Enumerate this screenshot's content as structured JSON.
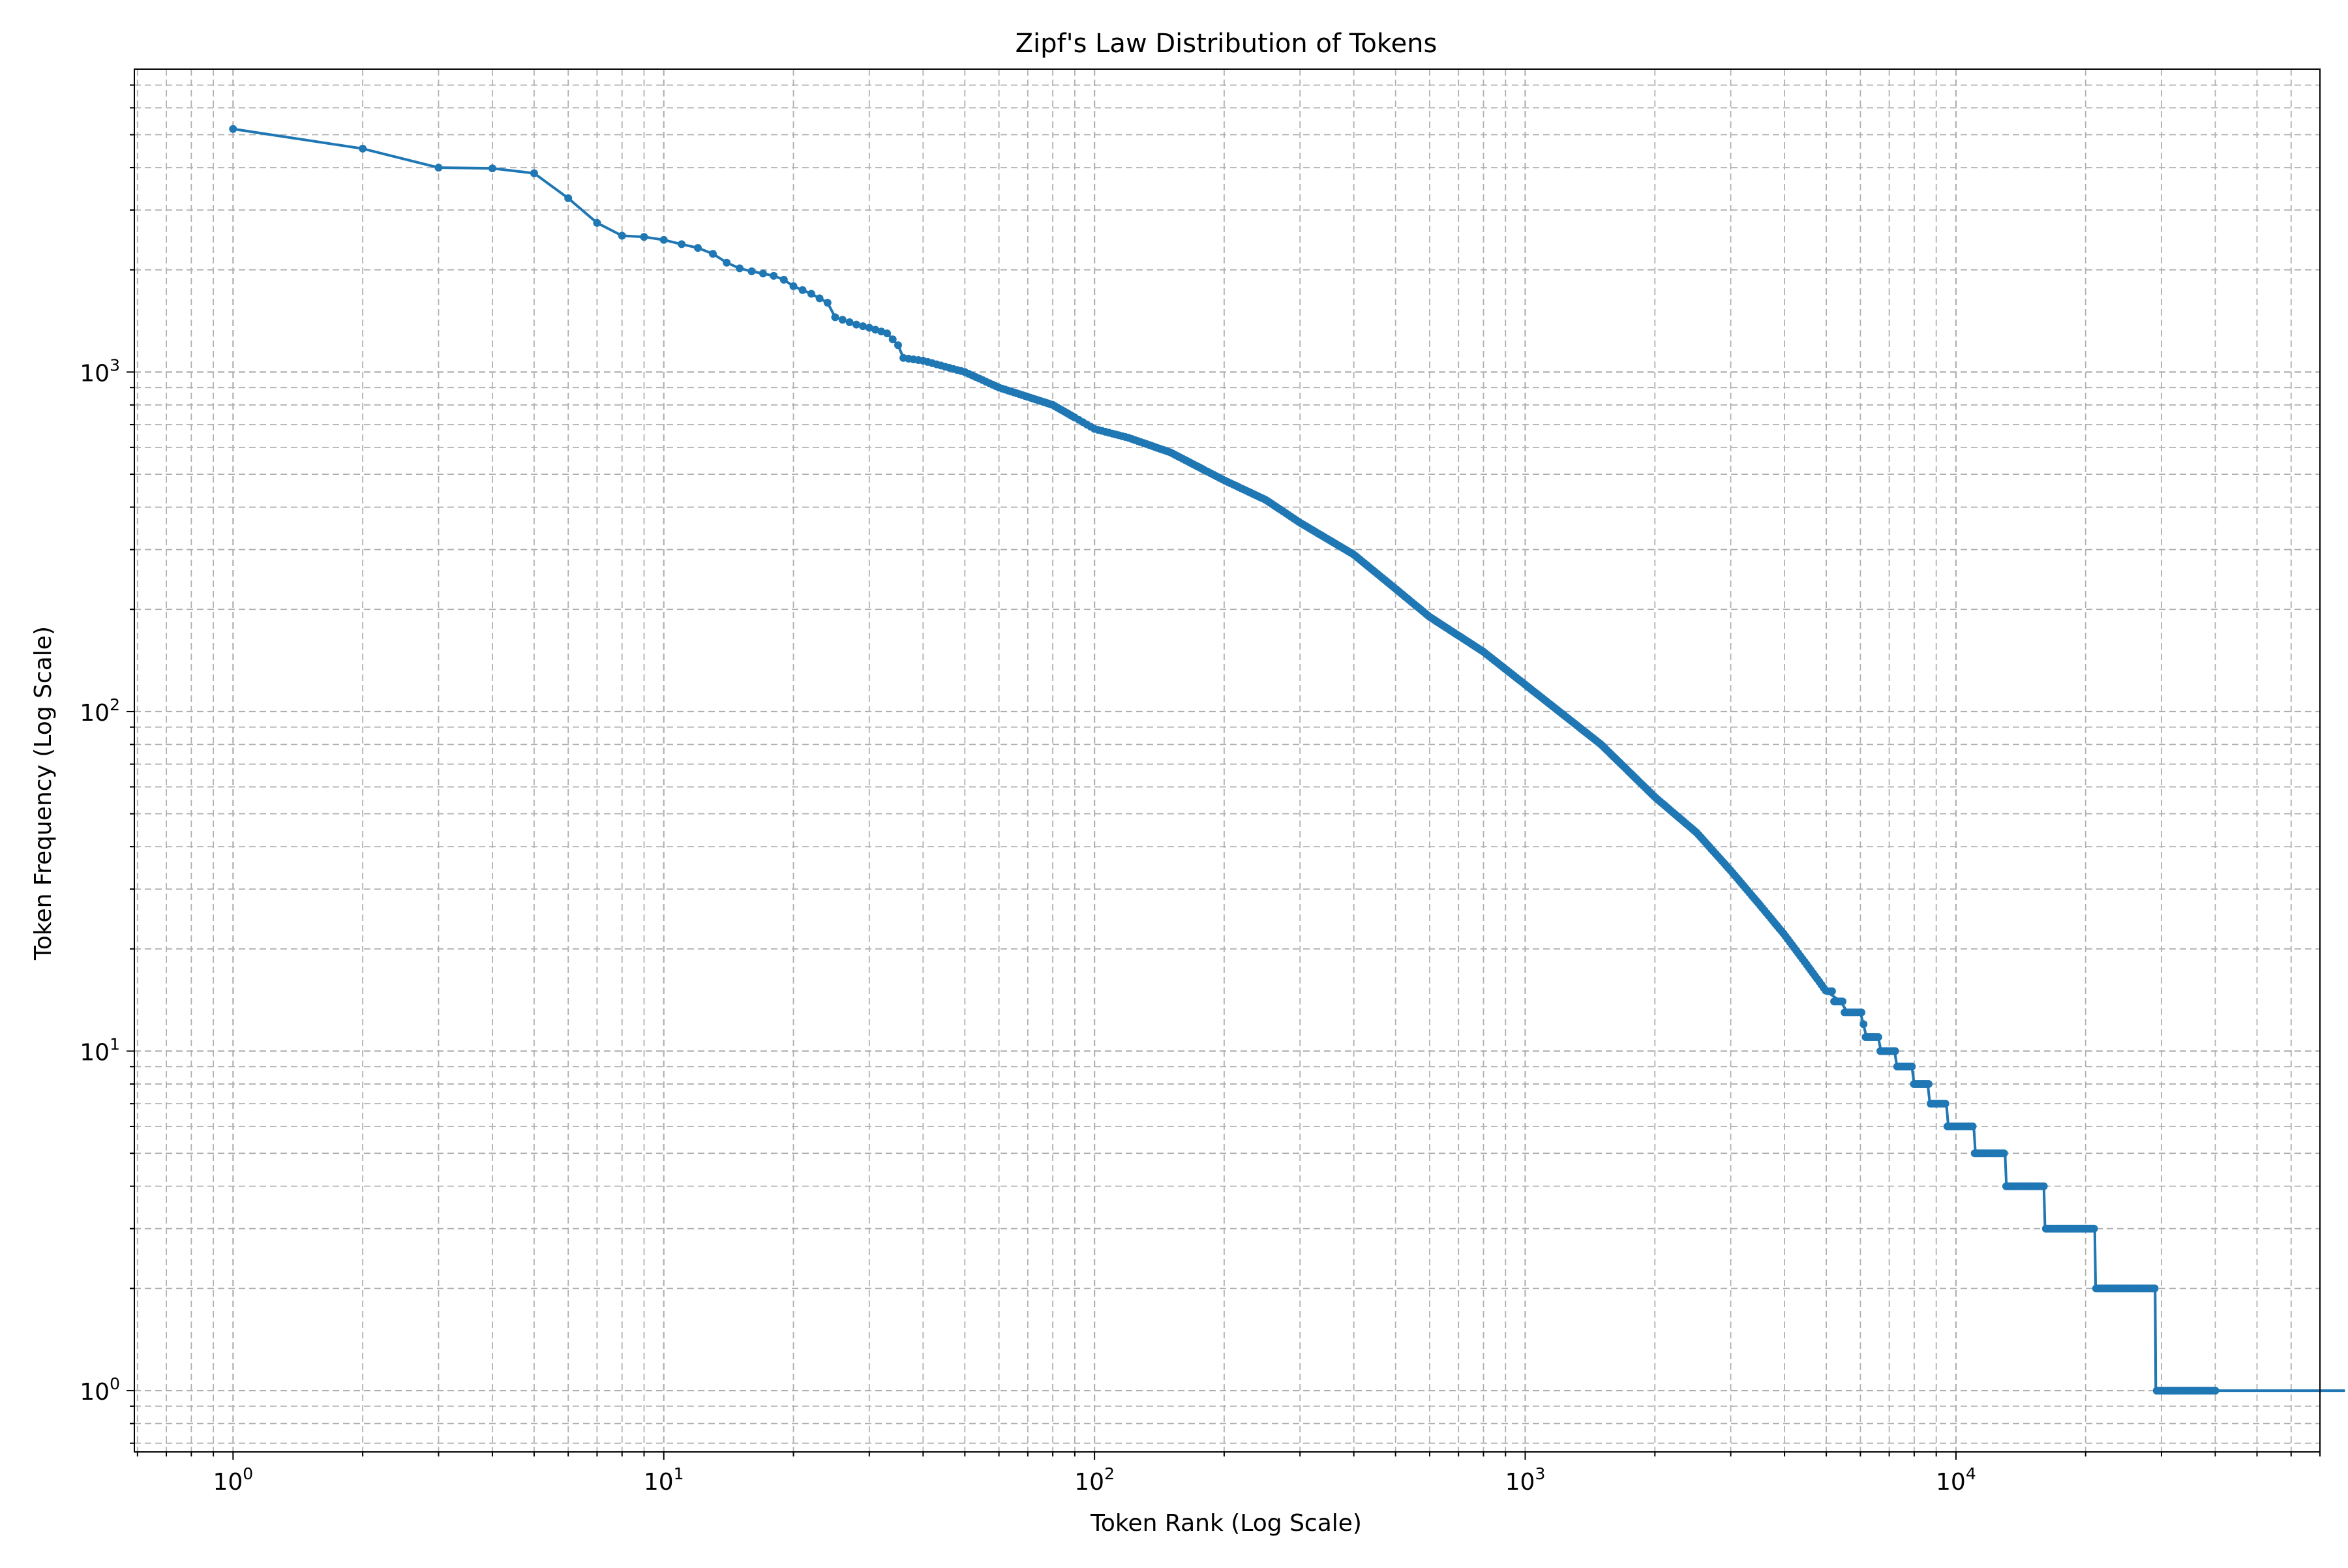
{
  "chart_data": {
    "type": "line",
    "title": "Zipf's Law Distribution of Tokens",
    "xlabel": "Token Rank (Log Scale)",
    "ylabel": "Token Frequency (Log Scale)",
    "x_scale": "log",
    "y_scale": "log",
    "xlim": [
      0.59,
      70000
    ],
    "ylim": [
      0.66,
      7800
    ],
    "x_major_ticks": [
      {
        "value": 1,
        "base": "10",
        "exp": "0"
      },
      {
        "value": 10,
        "base": "10",
        "exp": "1"
      },
      {
        "value": 100,
        "base": "10",
        "exp": "2"
      },
      {
        "value": 1000,
        "base": "10",
        "exp": "3"
      },
      {
        "value": 10000,
        "base": "10",
        "exp": "4"
      }
    ],
    "y_major_ticks": [
      {
        "value": 1,
        "base": "10",
        "exp": "0"
      },
      {
        "value": 10,
        "base": "10",
        "exp": "1"
      },
      {
        "value": 100,
        "base": "10",
        "exp": "2"
      },
      {
        "value": 1000,
        "base": "10",
        "exp": "3"
      }
    ],
    "grid": true,
    "grid_style": "dashed, major and minor",
    "marker": "circle",
    "series": [
      {
        "color": "#1f77b4",
        "points": [
          [
            1,
            5200
          ],
          [
            2,
            4550
          ],
          [
            3,
            4000
          ],
          [
            4,
            3980
          ],
          [
            5,
            3850
          ],
          [
            6,
            3250
          ],
          [
            7,
            2750
          ],
          [
            8,
            2520
          ],
          [
            9,
            2500
          ],
          [
            10,
            2450
          ],
          [
            11,
            2380
          ],
          [
            12,
            2320
          ],
          [
            13,
            2230
          ],
          [
            14,
            2100
          ],
          [
            15,
            2020
          ],
          [
            16,
            1980
          ],
          [
            17,
            1950
          ],
          [
            18,
            1920
          ],
          [
            19,
            1870
          ],
          [
            20,
            1790
          ],
          [
            22,
            1700
          ],
          [
            24,
            1600
          ],
          [
            25,
            1450
          ],
          [
            28,
            1380
          ],
          [
            30,
            1350
          ],
          [
            33,
            1300
          ],
          [
            35,
            1200
          ],
          [
            36,
            1100
          ],
          [
            40,
            1080
          ],
          [
            50,
            1000
          ],
          [
            60,
            900
          ],
          [
            80,
            800
          ],
          [
            100,
            680
          ],
          [
            120,
            640
          ],
          [
            150,
            580
          ],
          [
            200,
            480
          ],
          [
            250,
            420
          ],
          [
            300,
            360
          ],
          [
            400,
            290
          ],
          [
            500,
            230
          ],
          [
            600,
            190
          ],
          [
            800,
            150
          ],
          [
            1000,
            120
          ],
          [
            1200,
            100
          ],
          [
            1500,
            80
          ],
          [
            2000,
            56
          ],
          [
            2500,
            44
          ],
          [
            3000,
            34
          ],
          [
            3500,
            27
          ],
          [
            4000,
            22
          ],
          [
            4500,
            18
          ],
          [
            5000,
            15
          ],
          [
            5400,
            14
          ],
          [
            5600,
            13
          ],
          [
            6000,
            13
          ],
          [
            6200,
            11
          ],
          [
            6600,
            11
          ],
          [
            6700,
            10
          ],
          [
            7200,
            10
          ],
          [
            7300,
            9
          ],
          [
            7900,
            9
          ],
          [
            8000,
            8
          ],
          [
            8600,
            8
          ],
          [
            8700,
            7
          ],
          [
            9500,
            7
          ],
          [
            9600,
            6
          ],
          [
            11000,
            6
          ],
          [
            11100,
            5
          ],
          [
            13000,
            5
          ],
          [
            13100,
            4
          ],
          [
            16000,
            4
          ],
          [
            16100,
            3
          ],
          [
            21000,
            3
          ],
          [
            21100,
            2
          ],
          [
            29000,
            2
          ],
          [
            29100,
            1
          ],
          [
            80000,
            1
          ]
        ]
      }
    ]
  }
}
